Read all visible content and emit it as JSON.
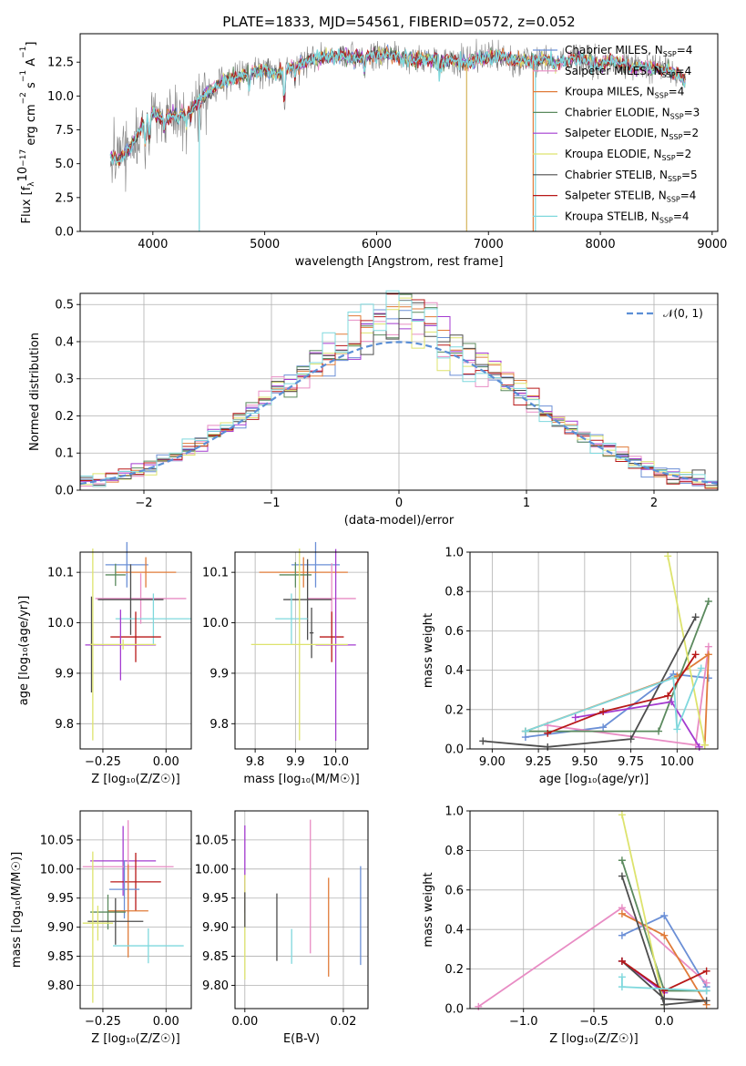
{
  "chart_data": [
    {
      "id": "spectrum",
      "type": "line",
      "title": "PLATE=1833, MJD=54561, FIBERID=0572, z=0.052",
      "xlabel": "wavelength [Angstrom, rest frame]",
      "ylabel": "Flux [f$_λ$10$^{-17}$ erg cm$^{-2}$ s$^{-1}$ A$^{-1}$]",
      "ylabel_parts": [
        "Flux [f",
        "λ",
        "10",
        "−17",
        " erg cm",
        "−2",
        " s",
        "−1",
        " A",
        "−1",
        "]"
      ],
      "xlim": [
        3350,
        9050
      ],
      "ylim": [
        0,
        14.6
      ],
      "xticks": [
        4000,
        5000,
        6000,
        7000,
        8000,
        9000
      ],
      "xticklabels": [
        "4000",
        "5000",
        "6000",
        "7000",
        "8000",
        "9000"
      ],
      "yticks": [
        0,
        2.5,
        5,
        7.5,
        10,
        12.5
      ],
      "yticklabels": [
        "0.0",
        "2.5",
        "5.0",
        "7.5",
        "10.0",
        "12.5"
      ],
      "observed_data_color": "#808080",
      "continuum_x": [
        3620,
        3700,
        3800,
        3900,
        4000,
        4100,
        4200,
        4300,
        4400,
        4500,
        4600,
        4700,
        4800,
        4900,
        5000,
        5100,
        5200,
        5300,
        5400,
        5500,
        5600,
        5700,
        5800,
        5900,
        6000,
        6100,
        6200,
        6300,
        6400,
        6500,
        6600,
        6700,
        6800,
        6900,
        7000,
        7100,
        7200,
        7300,
        7400,
        7500,
        7600,
        7700,
        7800,
        7900,
        8000,
        8100,
        8200,
        8300,
        8400,
        8500,
        8600,
        8700,
        8760
      ],
      "continuum_y": [
        5.5,
        5.3,
        6.2,
        7.8,
        8.8,
        8.2,
        8.6,
        8.8,
        9.5,
        10.3,
        10.9,
        11.3,
        11.5,
        11.8,
        11.9,
        11.6,
        12.0,
        12.3,
        12.6,
        12.8,
        12.9,
        13.0,
        12.8,
        12.9,
        13.0,
        13.1,
        12.8,
        12.7,
        12.8,
        12.6,
        12.6,
        12.6,
        12.4,
        12.7,
        12.8,
        13.0,
        12.7,
        12.6,
        12.6,
        12.8,
        12.5,
        12.6,
        12.8,
        12.5,
        12.3,
        12.6,
        12.4,
        12.1,
        12.2,
        12.0,
        11.9,
        11.5,
        11.2
      ],
      "dropouts": [
        {
          "x": 4415,
          "color": "#7fd8dd"
        },
        {
          "x": 6805,
          "color": "#d4b45a"
        },
        {
          "x": 7400,
          "color": "#e07b39"
        },
        {
          "x": 7420,
          "color": "#7fd8dd"
        }
      ],
      "series": [
        {
          "name": "Chabrier MILES, N",
          "sub": "SSP",
          "suffix": "=4",
          "color": "#6b8fd6"
        },
        {
          "name": "Salpeter MILES, N",
          "sub": "SSP",
          "suffix": "=4",
          "color": "#e88cc4"
        },
        {
          "name": "Kroupa MILES, N",
          "sub": "SSP",
          "suffix": "=4",
          "color": "#e07b39"
        },
        {
          "name": "Chabrier ELODIE, N",
          "sub": "SSP",
          "suffix": "=3",
          "color": "#5b8a5e"
        },
        {
          "name": "Salpeter ELODIE, N",
          "sub": "SSP",
          "suffix": "=2",
          "color": "#a43bd0"
        },
        {
          "name": "Kroupa ELODIE, N",
          "sub": "SSP",
          "suffix": "=2",
          "color": "#dde36d"
        },
        {
          "name": "Chabrier STELIB, N",
          "sub": "SSP",
          "suffix": "=5",
          "color": "#4d4d4d"
        },
        {
          "name": "Salpeter STELIB, N",
          "sub": "SSP",
          "suffix": "=4",
          "color": "#b81818"
        },
        {
          "name": "Kroupa STELIB, N",
          "sub": "SSP",
          "suffix": "=4",
          "color": "#7fd8dd"
        }
      ]
    },
    {
      "id": "residuals",
      "type": "step",
      "xlabel": "(data-model)/error",
      "ylabel": "Normed distribution",
      "xlim": [
        -2.5,
        2.5
      ],
      "ylim": [
        0,
        0.53
      ],
      "xticks": [
        -2,
        -1,
        0,
        1,
        2
      ],
      "xticklabels": [
        "−2",
        "−1",
        "0",
        "1",
        "2"
      ],
      "yticks": [
        0,
        0.1,
        0.2,
        0.3,
        0.4,
        0.5
      ],
      "yticklabels": [
        "0.0",
        "0.1",
        "0.2",
        "0.3",
        "0.4",
        "0.5"
      ],
      "legend": {
        "label": "𝒩(0, 1)",
        "placement": "upper right",
        "color": "#5b8fd6",
        "style": "dashed"
      },
      "bin_width": 0.1,
      "reference_curve": "standard normal pdf"
    },
    {
      "id": "age_vs_Z",
      "type": "errorbar",
      "xlabel": "Z [log₁₀(Z/Z☉)]",
      "ylabel": "age  [log₁₀(age/yr)]",
      "xlim": [
        -0.34,
        0.1
      ],
      "ylim": [
        9.75,
        10.14
      ],
      "xticks": [
        -0.25,
        0.0
      ],
      "xticklabels": [
        "−0.25",
        "0.00"
      ],
      "yticks": [
        9.8,
        9.9,
        10.0,
        10.1
      ],
      "yticklabels": [
        "9.8",
        "9.9",
        "10.0",
        "10.1"
      ],
      "points": [
        {
          "x": -0.155,
          "xerr": 0.085,
          "y": 10.115,
          "yerr": 0.045,
          "color": "#6b8fd6"
        },
        {
          "x": -0.08,
          "xerr": 0.12,
          "y": 10.1,
          "yerr": 0.03,
          "color": "#e07b39"
        },
        {
          "x": -0.2,
          "xerr": 0.04,
          "y": 10.095,
          "yerr": 0.022,
          "color": "#5b8a5e"
        },
        {
          "x": -0.1,
          "xerr": 0.18,
          "y": 10.048,
          "yerr": 0.05,
          "color": "#e88cc4"
        },
        {
          "x": -0.14,
          "xerr": 0.13,
          "y": 10.046,
          "yerr": 0.07,
          "color": "#4d4d4d"
        },
        {
          "x": -0.05,
          "xerr": 0.15,
          "y": 10.008,
          "yerr": 0.05,
          "color": "#7fd8dd"
        },
        {
          "x": -0.12,
          "xerr": 0.1,
          "y": 9.972,
          "yerr": 0.05,
          "color": "#b81818"
        },
        {
          "x": -0.18,
          "xerr": 0.14,
          "y": 9.956,
          "yerr": 0.07,
          "color": "#a43bd0"
        },
        {
          "x": -0.295,
          "xerr": 0.005,
          "y": 9.957,
          "yerr": 0.095,
          "color": "#4d4d4d"
        },
        {
          "x": -0.29,
          "xerr": 0.01,
          "y": 9.957,
          "yerr": 0.19,
          "color": "#dde36d"
        },
        {
          "x": -0.17,
          "xerr": 0.13,
          "y": 9.957,
          "yerr": 0.01,
          "color": "#dde36d"
        }
      ]
    },
    {
      "id": "age_vs_mass",
      "type": "errorbar",
      "xlabel": "mass [log₁₀(M/M☉)]",
      "ylabel": "",
      "xlim": [
        9.75,
        10.08
      ],
      "ylim": [
        9.75,
        10.14
      ],
      "xticks": [
        9.8,
        9.9,
        10.0
      ],
      "xticklabels": [
        "9.8",
        "9.9",
        "10.0"
      ],
      "yticks": [
        9.8,
        9.9,
        10.0,
        10.1
      ],
      "yticklabels": [
        "9.8",
        "9.9",
        "10.0",
        "10.1"
      ],
      "points": [
        {
          "x": 9.95,
          "xerr": 0.06,
          "y": 10.115,
          "yerr": 0.045,
          "color": "#6b8fd6"
        },
        {
          "x": 9.92,
          "xerr": 0.11,
          "y": 10.1,
          "yerr": 0.03,
          "color": "#e07b39"
        },
        {
          "x": 9.9,
          "xerr": 0.04,
          "y": 10.095,
          "yerr": 0.025,
          "color": "#5b8a5e"
        },
        {
          "x": 9.99,
          "xerr": 0.06,
          "y": 10.048,
          "yerr": 0.07,
          "color": "#e88cc4"
        },
        {
          "x": 9.93,
          "xerr": 0.06,
          "y": 10.046,
          "yerr": 0.08,
          "color": "#4d4d4d"
        },
        {
          "x": 9.89,
          "xerr": 0.04,
          "y": 10.008,
          "yerr": 0.05,
          "color": "#7fd8dd"
        },
        {
          "x": 9.99,
          "xerr": 0.03,
          "y": 9.972,
          "yerr": 0.05,
          "color": "#b81818"
        },
        {
          "x": 10.0,
          "xerr": 0.05,
          "y": 9.956,
          "yerr": 0.19,
          "color": "#a43bd0"
        },
        {
          "x": 9.94,
          "xerr": 0.005,
          "y": 9.98,
          "yerr": 0.05,
          "color": "#4d4d4d"
        },
        {
          "x": 9.91,
          "xerr": 0.12,
          "y": 9.957,
          "yerr": 0.19,
          "color": "#dde36d"
        }
      ]
    },
    {
      "id": "massweight_vs_age",
      "type": "line",
      "xlabel": "age  [log₁₀(age/yr)]",
      "ylabel": "mass weight",
      "xlim": [
        8.88,
        10.22
      ],
      "ylim": [
        0,
        1.0
      ],
      "xticks": [
        9.0,
        9.25,
        9.5,
        9.75,
        10.0
      ],
      "xticklabels": [
        "9.00",
        "9.25",
        "9.50",
        "9.75",
        "10.00"
      ],
      "yticks": [
        0,
        0.2,
        0.4,
        0.6,
        0.8,
        1.0
      ],
      "yticklabels": [
        "0.0",
        "0.2",
        "0.4",
        "0.6",
        "0.8",
        "1.0"
      ],
      "series": [
        {
          "color": "#6b8fd6",
          "x": [
            9.18,
            9.6,
            9.98,
            10.17
          ],
          "y": [
            0.06,
            0.11,
            0.38,
            0.36
          ]
        },
        {
          "color": "#e88cc4",
          "x": [
            9.3,
            10.1,
            10.17
          ],
          "y": [
            0.12,
            0.02,
            0.52
          ]
        },
        {
          "color": "#e07b39",
          "x": [
            9.18,
            10.0,
            10.17,
            10.15
          ],
          "y": [
            0.09,
            0.37,
            0.48,
            0.02
          ]
        },
        {
          "color": "#5b8a5e",
          "x": [
            9.18,
            9.9,
            10.17
          ],
          "y": [
            0.09,
            0.09,
            0.75
          ]
        },
        {
          "color": "#a43bd0",
          "x": [
            9.45,
            9.97,
            10.12
          ],
          "y": [
            0.16,
            0.24,
            0.01
          ]
        },
        {
          "color": "#dde36d",
          "x": [
            9.95,
            10.15
          ],
          "y": [
            0.98,
            0.02
          ]
        },
        {
          "color": "#4d4d4d",
          "x": [
            8.95,
            9.3,
            9.75,
            10.1
          ],
          "y": [
            0.04,
            0.01,
            0.05,
            0.67
          ]
        },
        {
          "color": "#b81818",
          "x": [
            9.3,
            9.6,
            9.95,
            10.1
          ],
          "y": [
            0.08,
            0.19,
            0.27,
            0.48
          ]
        },
        {
          "color": "#7fd8dd",
          "x": [
            9.18,
            9.98,
            10.0,
            10.13
          ],
          "y": [
            0.09,
            0.36,
            0.1,
            0.41
          ]
        }
      ]
    },
    {
      "id": "mass_vs_Z",
      "type": "errorbar",
      "xlabel": "Z [log₁₀(Z/Z☉)]",
      "ylabel": "mass [log₁₀(M/M☉)]",
      "xlim": [
        -0.34,
        0.1
      ],
      "ylim": [
        9.76,
        10.1
      ],
      "xticks": [
        -0.25,
        0.0
      ],
      "xticklabels": [
        "−0.25",
        "0.00"
      ],
      "yticks": [
        9.8,
        9.85,
        9.9,
        9.95,
        10.0,
        10.05
      ],
      "yticklabels": [
        "9.80",
        "9.85",
        "9.90",
        "9.95",
        "10.00",
        "10.05"
      ],
      "points": [
        {
          "x": -0.17,
          "xerr": 0.13,
          "y": 10.014,
          "yerr": 0.06,
          "color": "#a43bd0"
        },
        {
          "x": -0.15,
          "xerr": 0.18,
          "y": 10.004,
          "yerr": 0.08,
          "color": "#e88cc4"
        },
        {
          "x": -0.12,
          "xerr": 0.1,
          "y": 9.978,
          "yerr": 0.05,
          "color": "#b81818"
        },
        {
          "x": -0.165,
          "xerr": 0.06,
          "y": 9.965,
          "yerr": 0.05,
          "color": "#6b8fd6"
        },
        {
          "x": -0.15,
          "xerr": 0.08,
          "y": 9.928,
          "yerr": 0.08,
          "color": "#e07b39"
        },
        {
          "x": -0.23,
          "xerr": 0.07,
          "y": 9.926,
          "yerr": 0.03,
          "color": "#5b8a5e"
        },
        {
          "x": -0.2,
          "xerr": 0.11,
          "y": 9.91,
          "yerr": 0.04,
          "color": "#4d4d4d"
        },
        {
          "x": -0.27,
          "xerr": 0.06,
          "y": 9.907,
          "yerr": 0.03,
          "color": "#dde36d"
        },
        {
          "x": -0.07,
          "xerr": 0.14,
          "y": 9.868,
          "yerr": 0.03,
          "color": "#7fd8dd"
        },
        {
          "x": -0.29,
          "xerr": 0.005,
          "y": 9.9,
          "yerr": 0.13,
          "color": "#dde36d"
        }
      ]
    },
    {
      "id": "mass_vs_EBV",
      "type": "errorbar",
      "xlabel": "E(B-V)",
      "ylabel": "",
      "xlim": [
        -0.002,
        0.025
      ],
      "ylim": [
        9.76,
        10.1
      ],
      "xticks": [
        0.0,
        0.02
      ],
      "xticklabels": [
        "0.00",
        "0.02"
      ],
      "yticks": [
        9.8,
        9.85,
        9.9,
        9.95,
        10.0,
        10.05
      ],
      "yticklabels": [
        "9.80",
        "9.85",
        "9.90",
        "9.95",
        "10.00",
        "10.05"
      ],
      "points": [
        {
          "x": 0.0,
          "y": 10.0,
          "yerr": 0.075,
          "color": "#a43bd0"
        },
        {
          "x": 0.0,
          "y": 9.9,
          "yerr": 0.09,
          "color": "#dde36d"
        },
        {
          "x": 0.0,
          "y": 9.93,
          "yerr": 0.03,
          "color": "#4d4d4d"
        },
        {
          "x": 0.0065,
          "y": 9.9,
          "yerr": 0.058,
          "color": "#4d4d4d"
        },
        {
          "x": 0.0095,
          "y": 9.867,
          "yerr": 0.03,
          "color": "#7fd8dd"
        },
        {
          "x": 0.0133,
          "y": 9.97,
          "yerr": 0.115,
          "color": "#e88cc4"
        },
        {
          "x": 0.017,
          "y": 9.9,
          "yerr": 0.085,
          "color": "#e07b39"
        },
        {
          "x": 0.0235,
          "y": 9.92,
          "yerr": 0.085,
          "color": "#6b8fd6"
        }
      ]
    },
    {
      "id": "massweight_vs_Z",
      "type": "line",
      "xlabel": "Z [log₁₀(Z/Z☉)]",
      "ylabel": "mass weight",
      "xlim": [
        -1.38,
        0.38
      ],
      "ylim": [
        0,
        1.0
      ],
      "xticks": [
        -1.0,
        -0.5,
        0.0
      ],
      "xticklabels": [
        "−1.0",
        "−0.5",
        "0.0"
      ],
      "yticks": [
        0,
        0.2,
        0.4,
        0.6,
        0.8,
        1.0
      ],
      "yticklabels": [
        "0.0",
        "0.2",
        "0.4",
        "0.6",
        "0.8",
        "1.0"
      ],
      "series": [
        {
          "color": "#6b8fd6",
          "x": [
            -0.3,
            0.0,
            0.3
          ],
          "y": [
            0.37,
            0.47,
            0.11
          ]
        },
        {
          "color": "#e88cc4",
          "x": [
            -1.32,
            -0.3,
            0.3
          ],
          "y": [
            0.01,
            0.51,
            0.13
          ]
        },
        {
          "color": "#e07b39",
          "x": [
            -0.3,
            0.0,
            0.3
          ],
          "y": [
            0.48,
            0.37,
            0.02
          ]
        },
        {
          "color": "#5b8a5e",
          "x": [
            -0.3,
            0.0,
            0.3
          ],
          "y": [
            0.75,
            0.09,
            0.09
          ]
        },
        {
          "color": "#a43bd0",
          "x": [
            -0.3,
            0.0
          ],
          "y": [
            0.24,
            0.08
          ]
        },
        {
          "color": "#dde36d",
          "x": [
            -0.3,
            0.0
          ],
          "y": [
            0.98,
            0.02
          ]
        },
        {
          "color": "#4d4d4d",
          "x": [
            -0.3,
            0.0,
            0.3,
            0.0,
            -0.3
          ],
          "y": [
            0.67,
            0.02,
            0.04,
            0.05,
            0.24
          ]
        },
        {
          "color": "#b81818",
          "x": [
            -0.3,
            0.0,
            0.3
          ],
          "y": [
            0.24,
            0.09,
            0.19
          ]
        },
        {
          "color": "#7fd8dd",
          "x": [
            -0.3,
            -0.3,
            0.3
          ],
          "y": [
            0.16,
            0.11,
            0.09
          ]
        }
      ]
    }
  ]
}
